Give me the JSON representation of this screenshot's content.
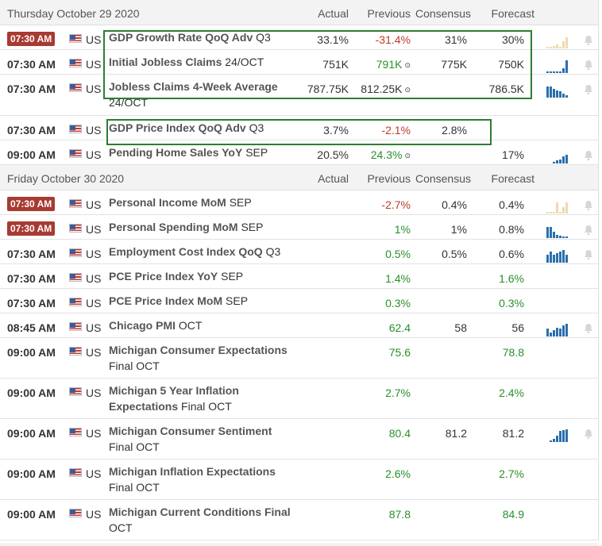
{
  "days": [
    {
      "date": "Thursday October 29 2020",
      "headers": {
        "actual": "Actual",
        "previous": "Previous",
        "consensus": "Consensus",
        "forecast": "Forecast"
      },
      "rows": [
        {
          "time": "07:30 AM",
          "badge": true,
          "country": "US",
          "event_bold": "GDP Growth Rate QoQ Adv",
          "event_rest": " Q3",
          "actual": "33.1%",
          "previous": "-31.4%",
          "previous_color": "red",
          "consensus": "31%",
          "forecast": "30%",
          "spark": "pale1",
          "bell": true
        },
        {
          "time": "07:30 AM",
          "badge": false,
          "country": "US",
          "event_bold": "Initial Jobless Claims",
          "event_rest": " 24/OCT",
          "actual": "751K",
          "previous": "791K",
          "previous_color": "green",
          "revised_icon": "⊙",
          "consensus": "775K",
          "forecast": "750K",
          "spark": "up1",
          "bell": true
        },
        {
          "time": "07:30 AM",
          "badge": false,
          "country": "US",
          "event_bold": "Jobless Claims 4-Week Average",
          "event_rest": " 24/OCT",
          "actual": "787.75K",
          "previous": "812.25K",
          "previous_color": "normal",
          "revised_icon": "⊙",
          "consensus": "",
          "forecast": "786.5K",
          "spark": "down1",
          "bell": true
        },
        {
          "time": "07:30 AM",
          "badge": false,
          "country": "US",
          "event_bold": "GDP Price Index QoQ Adv",
          "event_rest": " Q3",
          "actual": "3.7%",
          "previous": "-2.1%",
          "previous_color": "red",
          "consensus": "2.8%",
          "forecast": "",
          "spark": "",
          "bell": false
        },
        {
          "time": "09:00 AM",
          "badge": false,
          "country": "US",
          "event_bold": "Pending Home Sales YoY",
          "event_rest": " SEP",
          "actual": "20.5%",
          "previous": "24.3%",
          "previous_color": "green",
          "revised_icon": "⊙",
          "consensus": "",
          "forecast": "17%",
          "spark": "up2",
          "bell": true
        }
      ]
    },
    {
      "date": "Friday October 30 2020",
      "headers": {
        "actual": "Actual",
        "previous": "Previous",
        "consensus": "Consensus",
        "forecast": "Forecast"
      },
      "rows": [
        {
          "time": "07:30 AM",
          "badge": true,
          "country": "US",
          "event_bold": "Personal Income MoM",
          "event_rest": " SEP",
          "actual": "",
          "previous": "-2.7%",
          "previous_color": "red",
          "consensus": "0.4%",
          "forecast": "0.4%",
          "spark": "pale2",
          "bell": true
        },
        {
          "time": "07:30 AM",
          "badge": true,
          "country": "US",
          "event_bold": "Personal Spending MoM",
          "event_rest": " SEP",
          "actual": "",
          "previous": "1%",
          "previous_color": "green",
          "consensus": "1%",
          "forecast": "0.8%",
          "spark": "down2",
          "bell": true
        },
        {
          "time": "07:30 AM",
          "badge": false,
          "country": "US",
          "event_bold": "Employment Cost Index QoQ",
          "event_rest": " Q3",
          "actual": "",
          "previous": "0.5%",
          "previous_color": "green",
          "consensus": "0.5%",
          "forecast": "0.6%",
          "spark": "mixed",
          "bell": true
        },
        {
          "time": "07:30 AM",
          "badge": false,
          "country": "US",
          "event_bold": "PCE Price Index YoY",
          "event_rest": " SEP",
          "actual": "",
          "previous": "1.4%",
          "previous_color": "green",
          "consensus": "",
          "forecast": "1.6%",
          "forecast_color": "green",
          "spark": "",
          "bell": false
        },
        {
          "time": "07:30 AM",
          "badge": false,
          "country": "US",
          "event_bold": "PCE Price Index MoM",
          "event_rest": " SEP",
          "actual": "",
          "previous": "0.3%",
          "previous_color": "green",
          "consensus": "",
          "forecast": "0.3%",
          "forecast_color": "green",
          "spark": "",
          "bell": false
        },
        {
          "time": "08:45 AM",
          "badge": false,
          "country": "US",
          "event_bold": "Chicago PMI",
          "event_rest": " OCT",
          "actual": "",
          "previous": "62.4",
          "previous_color": "green",
          "consensus": "58",
          "forecast": "56",
          "spark": "up3",
          "bell": true
        },
        {
          "time": "09:00 AM",
          "badge": false,
          "country": "US",
          "event_bold": "Michigan Consumer Expectations",
          "event_rest": " Final OCT",
          "actual": "",
          "previous": "75.6",
          "previous_color": "green",
          "consensus": "",
          "forecast": "78.8",
          "forecast_color": "green",
          "spark": "",
          "bell": false
        },
        {
          "time": "09:00 AM",
          "badge": false,
          "country": "US",
          "event_bold": "Michigan 5 Year Inflation Expectations",
          "event_rest": " Final OCT",
          "actual": "",
          "previous": "2.7%",
          "previous_color": "green",
          "consensus": "",
          "forecast": "2.4%",
          "forecast_color": "green",
          "spark": "",
          "bell": false
        },
        {
          "time": "09:00 AM",
          "badge": false,
          "country": "US",
          "event_bold": "Michigan Consumer Sentiment",
          "event_rest": " Final OCT",
          "actual": "",
          "previous": "80.4",
          "previous_color": "green",
          "consensus": "81.2",
          "forecast": "81.2",
          "spark": "up4",
          "bell": true
        },
        {
          "time": "09:00 AM",
          "badge": false,
          "country": "US",
          "event_bold": "Michigan Inflation Expectations",
          "event_rest": " Final OCT",
          "actual": "",
          "previous": "2.6%",
          "previous_color": "green",
          "consensus": "",
          "forecast": "2.7%",
          "forecast_color": "green",
          "spark": "",
          "bell": false
        },
        {
          "time": "09:00 AM",
          "badge": false,
          "country": "US",
          "event_bold": "Michigan Current Conditions Final",
          "event_rest": " OCT",
          "actual": "",
          "previous": "87.8",
          "previous_color": "green",
          "consensus": "",
          "forecast": "84.9",
          "forecast_color": "green",
          "spark": "",
          "bell": false
        }
      ]
    }
  ],
  "colors": {
    "badge": "#a83a32",
    "positive": "#2a8f2a",
    "negative": "#c0392b",
    "highlight_box": "#2e7d32",
    "sparkline": "#2b6fad"
  }
}
